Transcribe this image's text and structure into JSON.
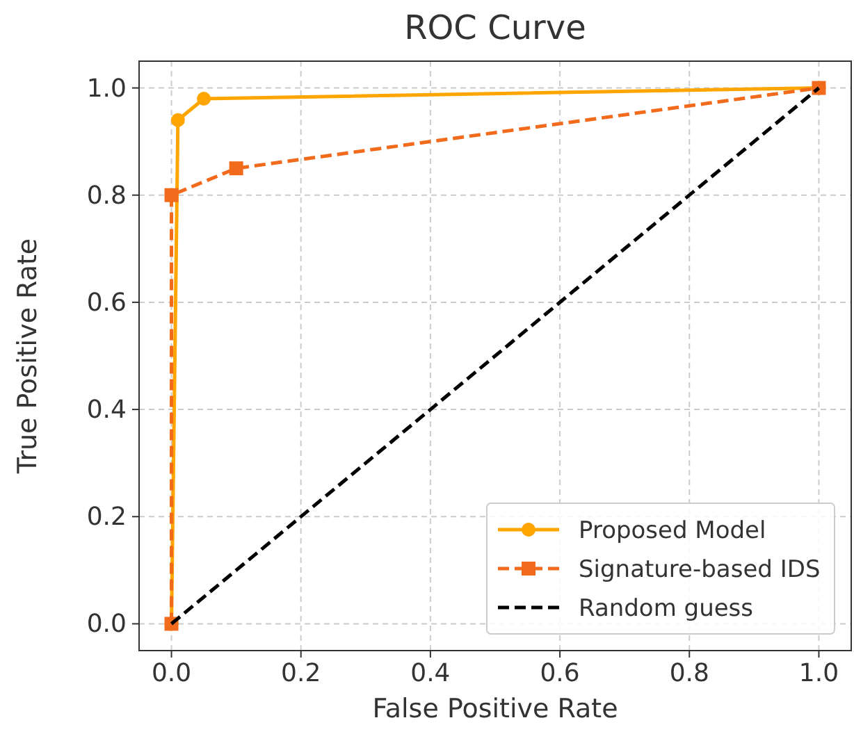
{
  "chart_data": {
    "type": "line",
    "title": "ROC Curve",
    "xlabel": "False Positive Rate",
    "ylabel": "True Positive Rate",
    "xlim": [
      -0.05,
      1.05
    ],
    "ylim": [
      -0.05,
      1.05
    ],
    "xticks": [
      {
        "value": 0,
        "label": "0.0"
      },
      {
        "value": 0.2,
        "label": "0.2"
      },
      {
        "value": 0.4,
        "label": "0.4"
      },
      {
        "value": 0.6,
        "label": "0.6"
      },
      {
        "value": 0.8,
        "label": "0.8"
      },
      {
        "value": 1,
        "label": "1.0"
      }
    ],
    "yticks": [
      {
        "value": 0,
        "label": "0.0"
      },
      {
        "value": 0.2,
        "label": "0.2"
      },
      {
        "value": 0.4,
        "label": "0.4"
      },
      {
        "value": 0.6,
        "label": "0.6"
      },
      {
        "value": 0.8,
        "label": "0.8"
      },
      {
        "value": 1,
        "label": "1.0"
      }
    ],
    "grid": true,
    "legend": "bottom right",
    "series": [
      {
        "name": "Proposed Model",
        "color": "#ffa500",
        "x": [
          0,
          0.01,
          0.05,
          1
        ],
        "values": [
          0,
          0.94,
          0.98,
          1
        ],
        "marker": "circle",
        "line_style": "solid"
      },
      {
        "name": "Signature-based IDS",
        "color": "#f26a1b",
        "x": [
          0,
          0,
          0.1,
          1
        ],
        "values": [
          0,
          0.8,
          0.85,
          1
        ],
        "marker": "square",
        "line_style": "dashed"
      },
      {
        "name": "Random guess",
        "color": "#000000",
        "x": [
          0,
          1
        ],
        "values": [
          0,
          1
        ],
        "marker": "none",
        "line_style": "dashed"
      }
    ]
  }
}
